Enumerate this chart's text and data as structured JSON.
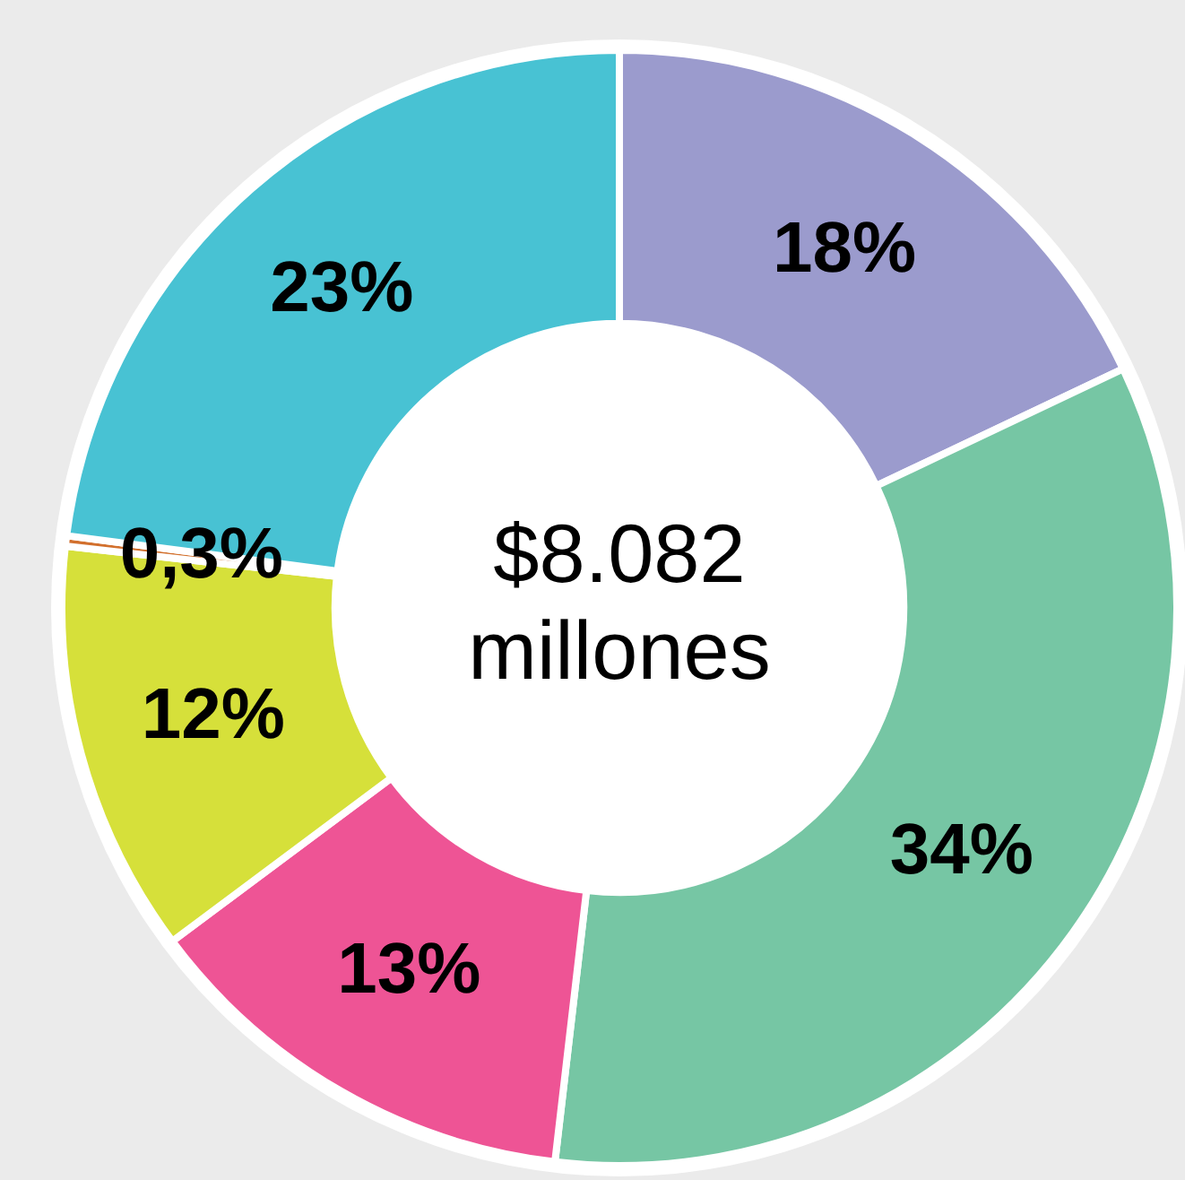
{
  "chart_data": {
    "type": "donut",
    "categories": [
      null,
      null,
      null,
      null,
      null,
      null
    ],
    "values": [
      18,
      34,
      13,
      12,
      0.3,
      23
    ],
    "colors": [
      "#9b9bcd",
      "#76c6a4",
      "#ee5495",
      "#d6e03a",
      "#d2702d",
      "#48c2d3"
    ],
    "value_labels": [
      "18%",
      "34%",
      "13%",
      "12%",
      "0,3%",
      "23%"
    ],
    "annotations": [
      "$8.082 millones"
    ]
  }
}
